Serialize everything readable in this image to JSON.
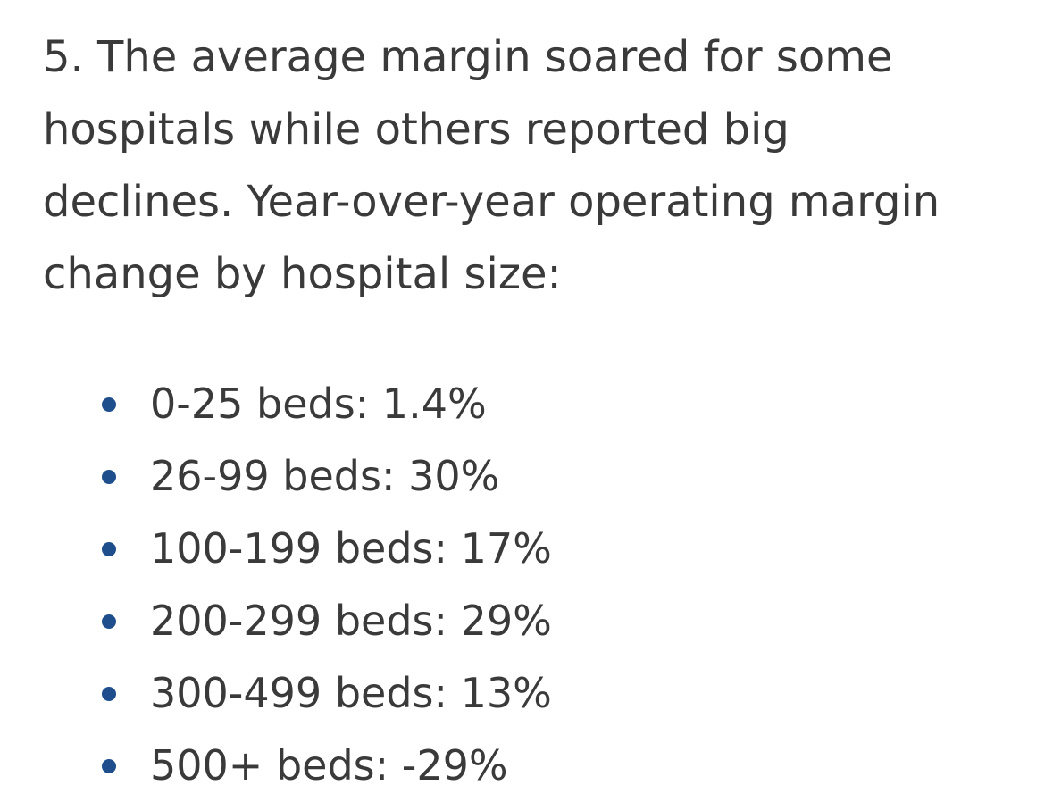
{
  "heading": {
    "line1": "5. The average margin soared for some",
    "line2": "hospitals while others reported big",
    "line3": "declines. Year-over-year operating margin",
    "line4": "change by hospital size:"
  },
  "bullets": [
    {
      "text": "0-25 beds: 1.4%"
    },
    {
      "text": "26-99 beds: 30%"
    },
    {
      "text": "100-199 beds: 17%"
    },
    {
      "text": "200-299 beds: 29%"
    },
    {
      "text": "300-499 beds: 13%"
    },
    {
      "text": "500+ beds: -29%"
    }
  ],
  "colors": {
    "text": "#3a3a3a",
    "bullet": "#1f4e8c",
    "background": "#ffffff"
  }
}
